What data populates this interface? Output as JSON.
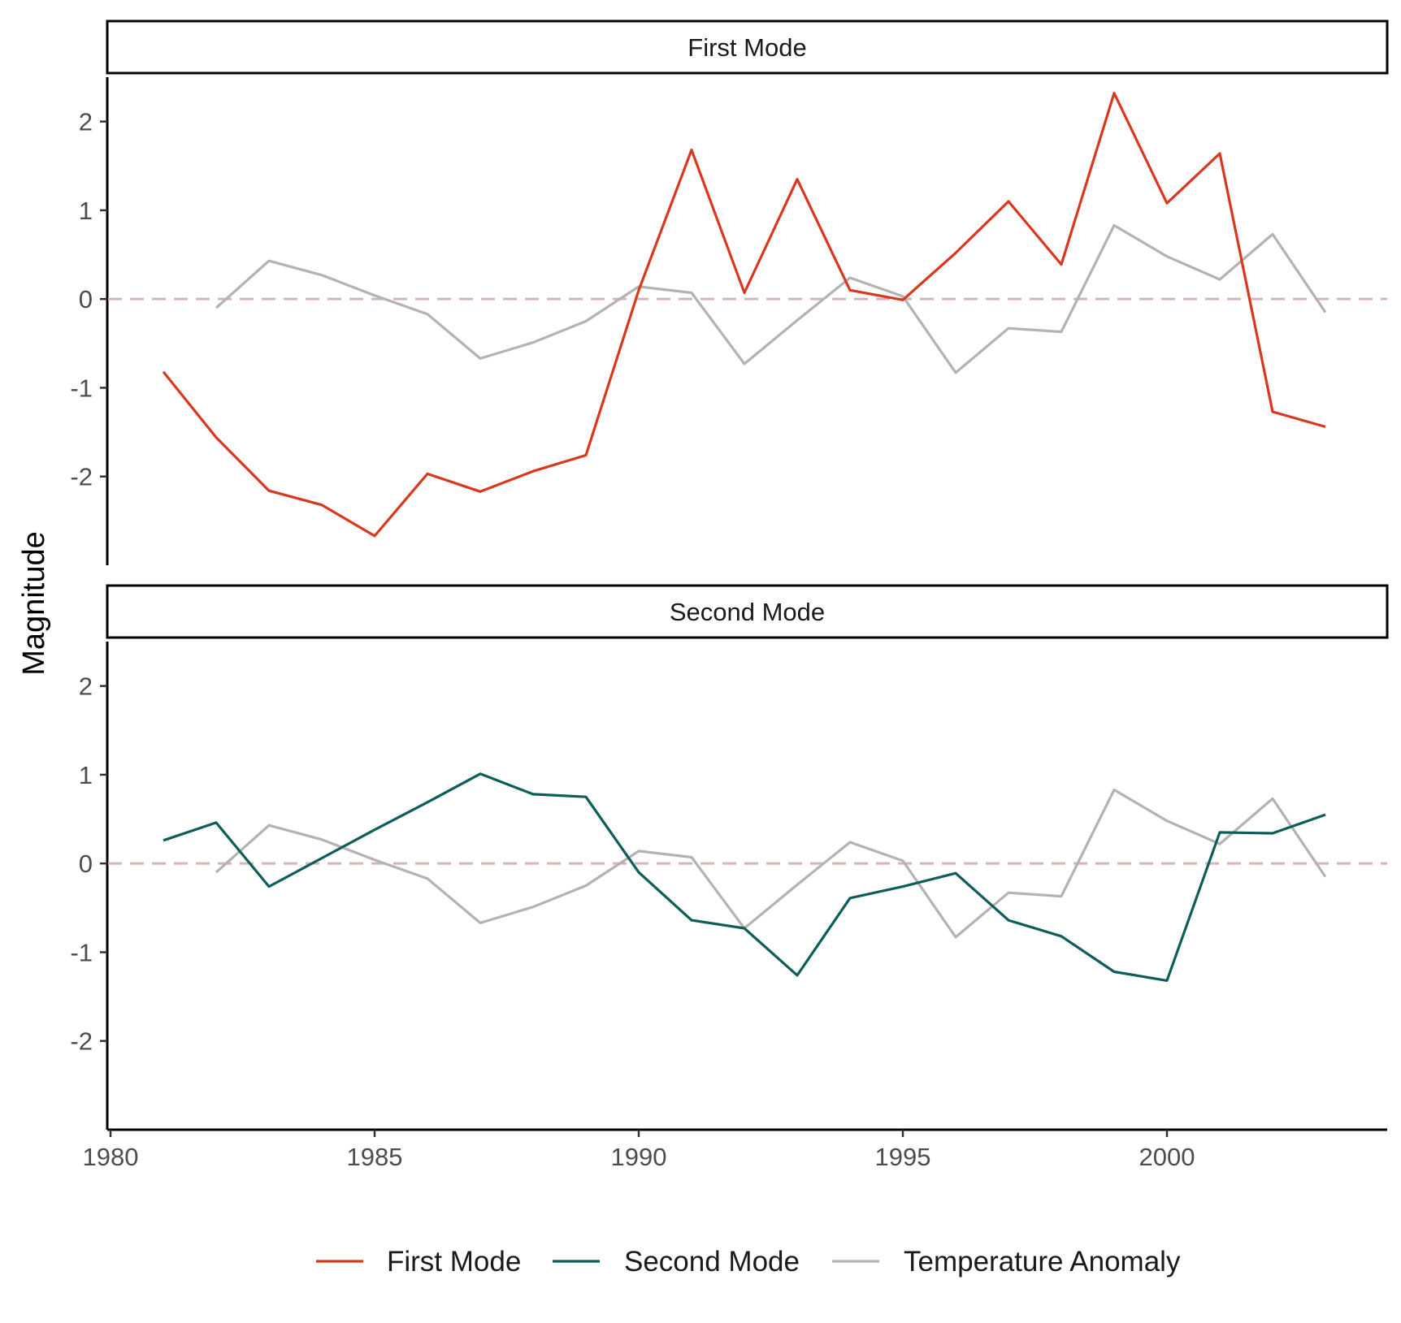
{
  "chart_data": {
    "type": "line",
    "facets": [
      "First Mode",
      "Second Mode"
    ],
    "ylabel": "Magnitude",
    "xlabel": "",
    "xlim": [
      1980,
      2004
    ],
    "ylim": [
      -3.0,
      2.5
    ],
    "x_ticks": [
      1980,
      1985,
      1990,
      1995,
      2000
    ],
    "y_ticks": [
      -2,
      -1,
      0,
      1,
      2
    ],
    "y_tick_labels": [
      "-2",
      "-1",
      "0",
      "1",
      "2"
    ],
    "reference_line": 0,
    "grid": false,
    "legend_position": "bottom",
    "series": [
      {
        "name": "First Mode",
        "facet": "First Mode",
        "color": "#d9381e",
        "x": [
          1981,
          1982,
          1983,
          1984,
          1985,
          1986,
          1987,
          1988,
          1989,
          1990,
          1991,
          1992,
          1993,
          1994,
          1995,
          1996,
          1997,
          1998,
          1999,
          2000,
          2001,
          2002,
          2003
        ],
        "y": [
          -0.82,
          -1.56,
          -2.16,
          -2.32,
          -2.67,
          -1.97,
          -2.17,
          -1.94,
          -1.76,
          0.1,
          1.68,
          0.07,
          1.35,
          0.1,
          -0.01,
          0.52,
          1.1,
          0.39,
          2.32,
          1.08,
          1.64,
          -1.27,
          -1.44
        ]
      },
      {
        "name": "Second Mode",
        "facet": "Second Mode",
        "color": "#0d5e58",
        "x": [
          1981,
          1982,
          1983,
          1984,
          1985,
          1986,
          1987,
          1988,
          1989,
          1990,
          1991,
          1992,
          1993,
          1994,
          1995,
          1996,
          1997,
          1998,
          1999,
          2000,
          2001,
          2002,
          2003
        ],
        "y": [
          0.26,
          0.46,
          -0.26,
          0.06,
          0.38,
          0.69,
          1.01,
          0.78,
          0.75,
          -0.1,
          -0.64,
          -0.73,
          -1.26,
          -0.39,
          -0.26,
          -0.11,
          -0.64,
          -0.82,
          -1.22,
          -1.32,
          0.35,
          0.34,
          0.55
        ]
      },
      {
        "name": "Temperature Anomaly",
        "facet": "both",
        "color": "#b3b3b3",
        "x": [
          1982,
          1983,
          1984,
          1985,
          1986,
          1987,
          1988,
          1989,
          1990,
          1991,
          1992,
          1993,
          1994,
          1995,
          1996,
          1997,
          1998,
          1999,
          2000,
          2001,
          2002,
          2003
        ],
        "y": [
          -0.1,
          0.43,
          0.27,
          0.04,
          -0.17,
          -0.67,
          -0.49,
          -0.25,
          0.14,
          0.07,
          -0.73,
          -0.24,
          0.24,
          0.03,
          -0.83,
          -0.33,
          -0.37,
          0.83,
          0.48,
          0.22,
          0.73,
          -0.15
        ]
      }
    ],
    "reference_line_color": "#d5b5b5"
  }
}
